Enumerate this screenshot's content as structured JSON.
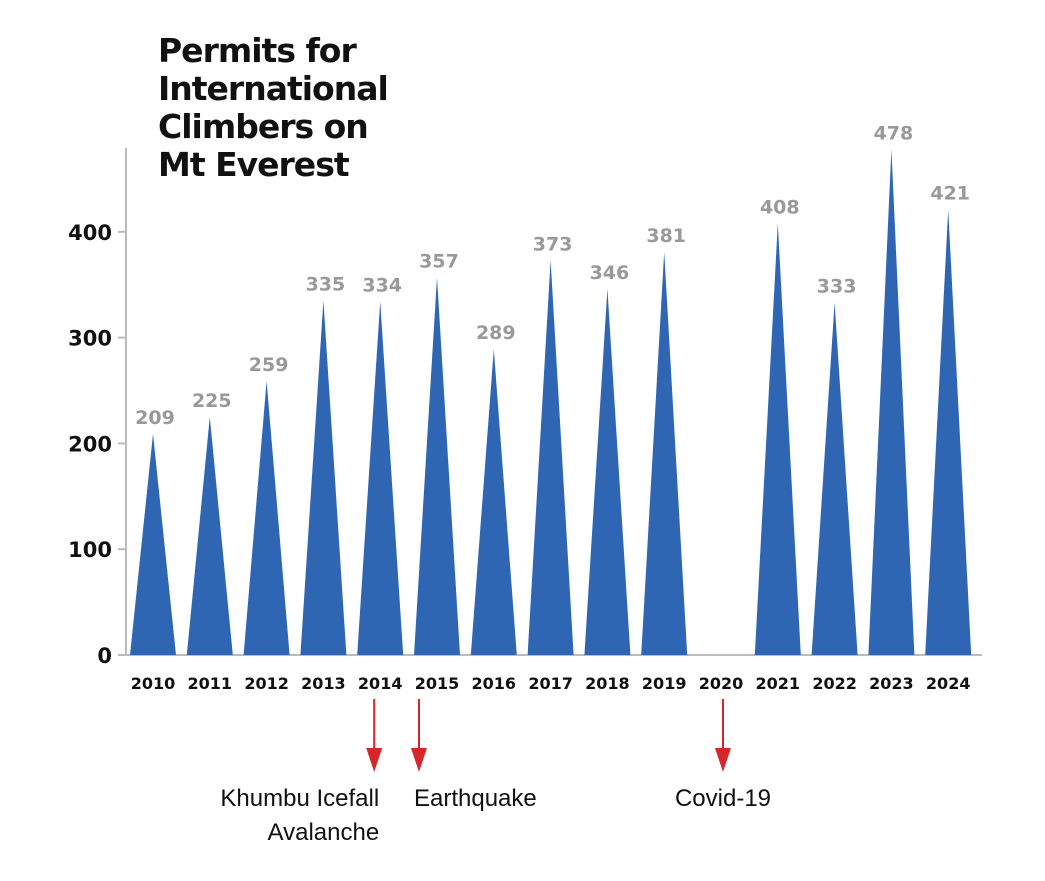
{
  "chart_data": {
    "type": "bar",
    "title": "Permits for International Climbers on Mt Everest",
    "title_lines": [
      "Permits for",
      "International",
      "Climbers on",
      "Mt Everest"
    ],
    "categories": [
      "2010",
      "2011",
      "2012",
      "2013",
      "2014",
      "2015",
      "2016",
      "2017",
      "2018",
      "2019",
      "2020",
      "2021",
      "2022",
      "2023",
      "2024"
    ],
    "values": [
      209,
      225,
      259,
      335,
      334,
      357,
      289,
      373,
      346,
      381,
      null,
      408,
      333,
      478,
      421
    ],
    "data_labels": [
      "209",
      "225",
      "259",
      "335",
      "334",
      "357",
      "289",
      "373",
      "346",
      "381",
      "",
      "408",
      "333",
      "478",
      "421"
    ],
    "yticks": [
      0,
      100,
      200,
      300,
      400
    ],
    "ytick_labels": [
      "0",
      "100",
      "200",
      "300",
      "400"
    ],
    "ylim": [
      0,
      480
    ],
    "xlabel": "",
    "ylabel": "",
    "grid": false,
    "bar_shape": "triangle",
    "bar_color": "#2f66b3",
    "data_label_color": "#999999",
    "arrow_color": "#d7262a",
    "annotations": [
      {
        "category": "2014",
        "lines": [
          "Khumbu Icefall",
          "Avalanche"
        ]
      },
      {
        "category": "2015",
        "lines": [
          "Earthquake"
        ]
      },
      {
        "category": "2020",
        "lines": [
          "Covid-19"
        ]
      }
    ]
  }
}
